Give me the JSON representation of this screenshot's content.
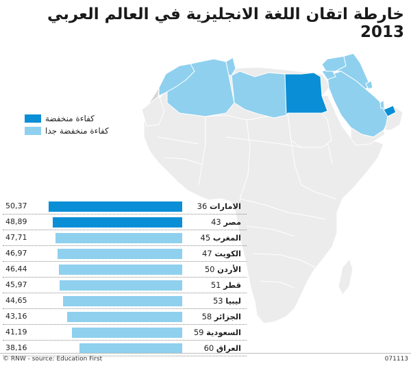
{
  "title": "خارطة اتقان اللغة الانجليزية في العالم العربي 2013",
  "legend": [
    {
      "label": "كفاءة منخفضة",
      "level": "low"
    },
    {
      "label": "كفاءة منخفضة جدا",
      "level": "very-low"
    }
  ],
  "colors": {
    "low": "#0a8fd6",
    "very_low": "#8fd0ee",
    "land": "#ececec",
    "border": "#ffffff",
    "other_land": "#d6d6d6"
  },
  "ranking": [
    {
      "rank": "36",
      "country": "الامارات",
      "score": "50,37",
      "value": 50.37,
      "level": "low"
    },
    {
      "rank": "43",
      "country": "مصر",
      "score": "48,89",
      "value": 48.89,
      "level": "low"
    },
    {
      "rank": "45",
      "country": "المغرب",
      "score": "47,71",
      "value": 47.71,
      "level": "very-low"
    },
    {
      "rank": "47",
      "country": "الكويت",
      "score": "46,97",
      "value": 46.97,
      "level": "very-low"
    },
    {
      "rank": "50",
      "country": "الأردن",
      "score": "46,44",
      "value": 46.44,
      "level": "very-low"
    },
    {
      "rank": "51",
      "country": "قطر",
      "score": "45,97",
      "value": 45.97,
      "level": "very-low"
    },
    {
      "rank": "53",
      "country": "ليبيا",
      "score": "44,65",
      "value": 44.65,
      "level": "very-low"
    },
    {
      "rank": "58",
      "country": "الجزائر",
      "score": "43,16",
      "value": 43.16,
      "level": "very-low"
    },
    {
      "rank": "59",
      "country": "السعودية",
      "score": "41,19",
      "value": 41.19,
      "level": "very-low"
    },
    {
      "rank": "60",
      "country": "العراق",
      "score": "38,16",
      "value": 38.16,
      "level": "very-low"
    }
  ],
  "footer": {
    "credit": "© RNW - source: Education First",
    "code": "071113"
  }
}
